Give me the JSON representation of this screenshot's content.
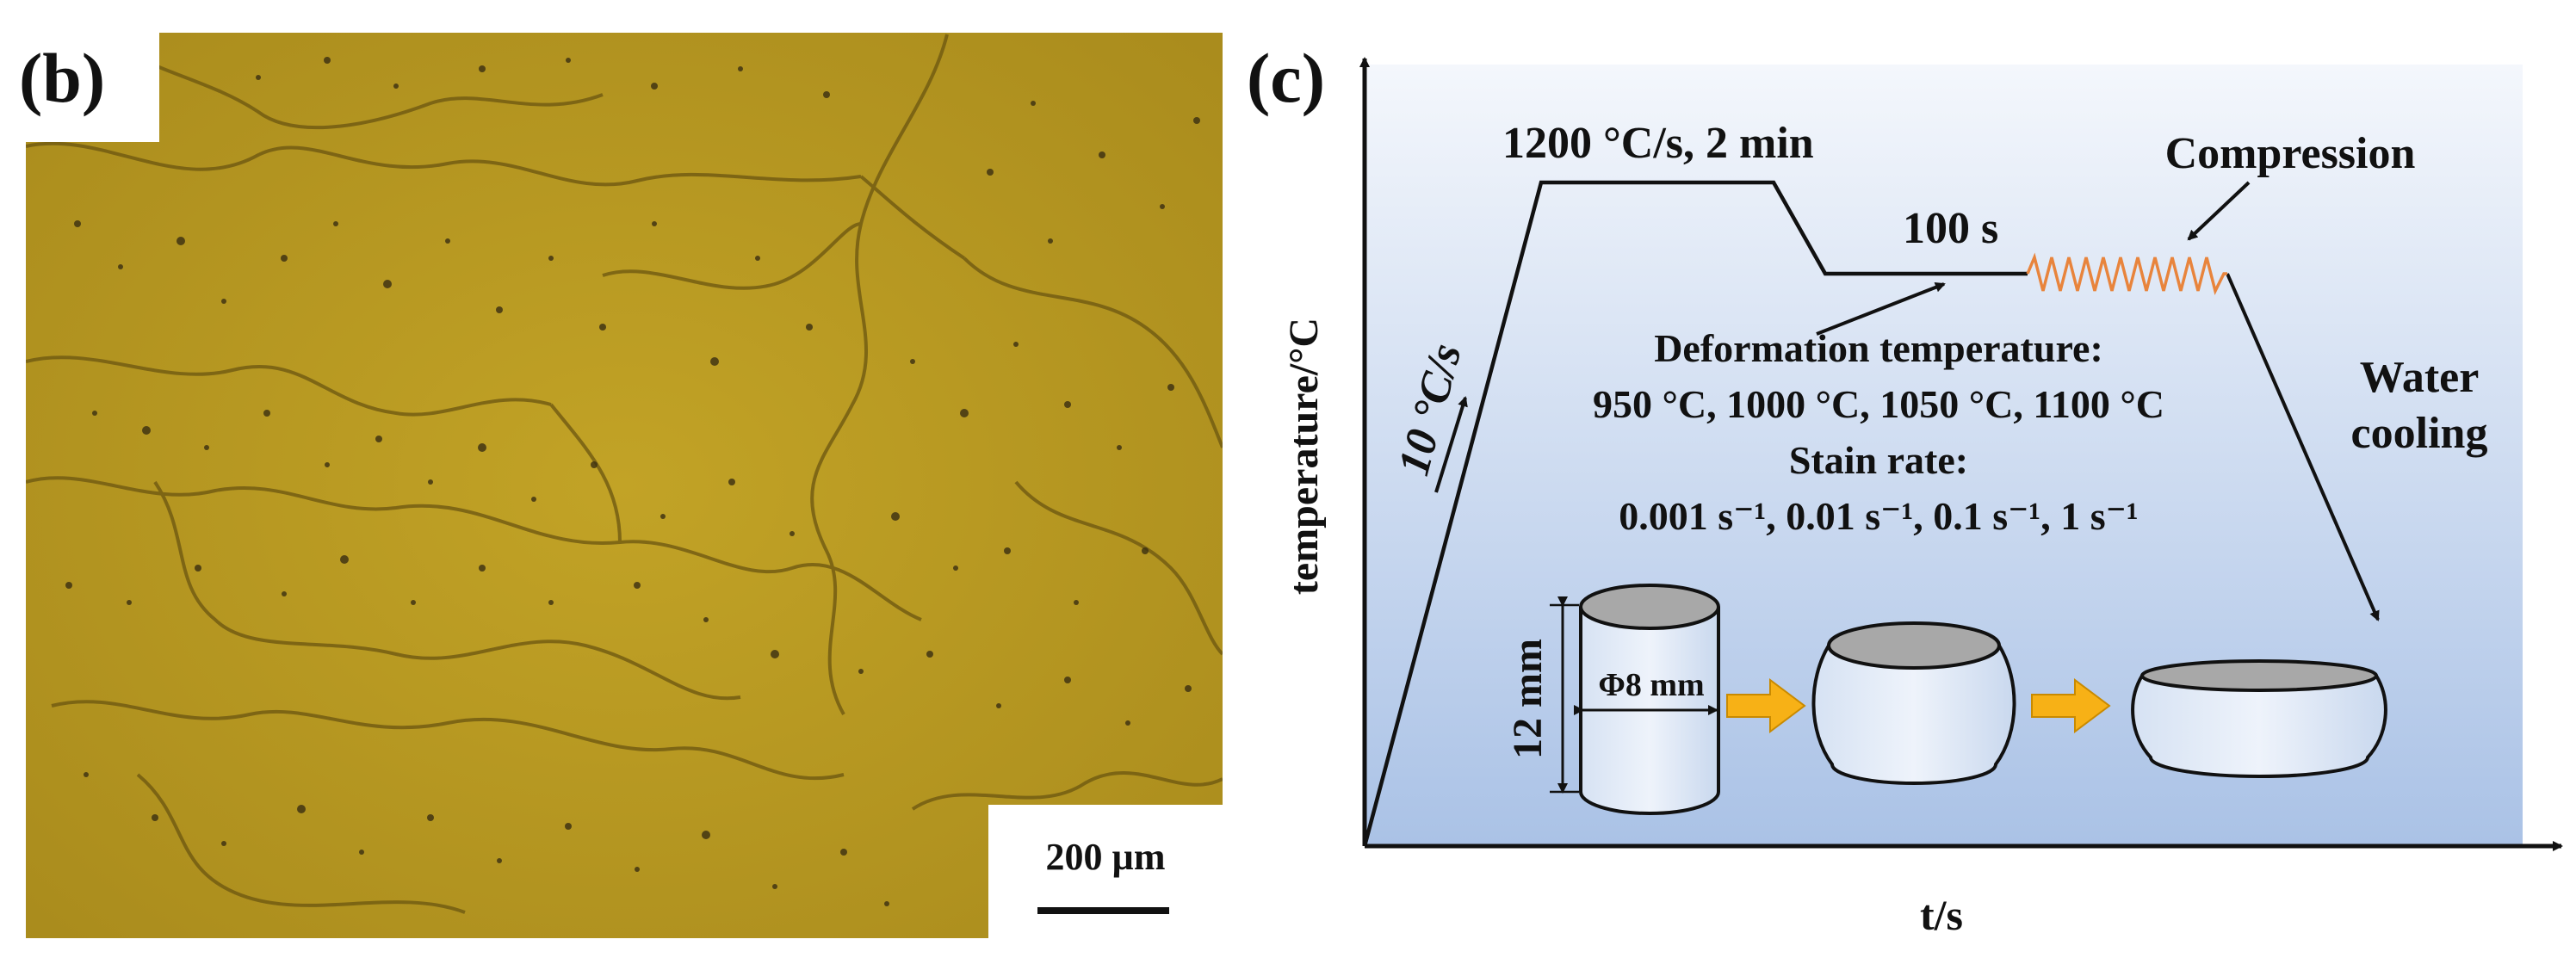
{
  "panel_b": {
    "label": "(b)",
    "scale_bar_label": "200 µm",
    "colors": {
      "background": "#b89a22",
      "grain_boundary": "#6b5510",
      "precipitate": "#3a2e12"
    }
  },
  "panel_c": {
    "label": "(c)",
    "y_axis_label": "temperature/°C",
    "x_axis_label": "t/s",
    "heating_rate": "10 °C/s",
    "hold_label": "1200 °C/s, 2 min",
    "hold2_label": "100 s",
    "compression_label": "Compression",
    "water_cooling": [
      "Water",
      "cooling"
    ],
    "deformation_temperature_title": "Deformation temperature:",
    "deformation_temperatures": "950 °C, 1000 °C, 1050 °C, 1100 °C",
    "strain_rate_title": "Stain rate:",
    "strain_rates": "0.001 s⁻¹, 0.01 s⁻¹, 0.1 s⁻¹, 1 s⁻¹",
    "specimen_height": "12 mm",
    "specimen_diameter": "Φ8 mm",
    "colors": {
      "gradient_top": "#f4f7fc",
      "gradient_bottom": "#aac2e6",
      "spring": "#e8843c",
      "arrow_fill": "#f7b116",
      "cap": "#a8a8a8",
      "line": "#111111"
    }
  }
}
